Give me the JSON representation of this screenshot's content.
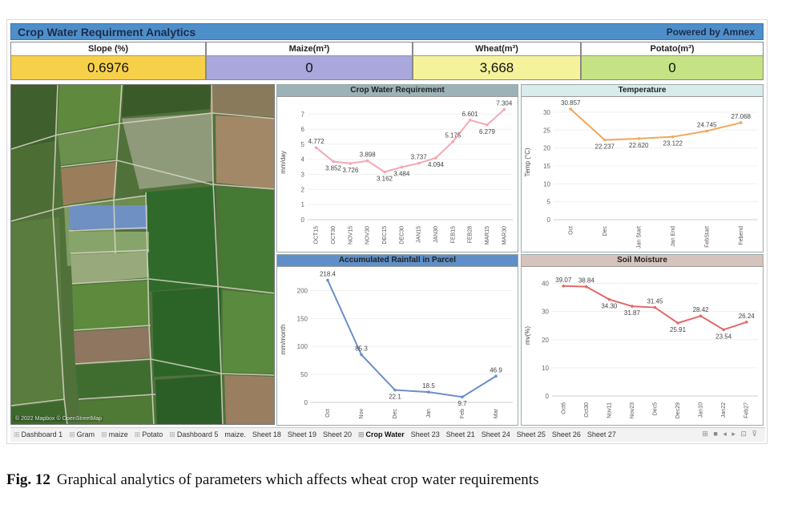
{
  "header": {
    "title": "Crop Water Requirment Analytics",
    "powered_by": "Powered by Amnex"
  },
  "kpis": [
    {
      "label": "Slope (%)",
      "value": "0.6976",
      "color": "#f7d04a"
    },
    {
      "label": "Maize(m³)",
      "value": "0",
      "color": "#a9a7dc"
    },
    {
      "label": "Wheat(m³)",
      "value": "3,668",
      "color": "#f5f29c"
    },
    {
      "label": "Potato(m³)",
      "value": "0",
      "color": "#c5e384"
    }
  ],
  "map": {
    "attribution": "© 2022 Mapbox © OpenStreetMap"
  },
  "panels": {
    "cwr": {
      "title": "Crop Water Requirement",
      "header_color": "#9bb3b7",
      "line_color": "#f4a8b2",
      "chart_data": {
        "type": "line",
        "ylabel": "mm/day",
        "yticks": [
          0,
          1,
          2,
          3,
          4,
          5,
          6,
          7
        ],
        "ylim": [
          0,
          7.6
        ],
        "categories": [
          "OCT15",
          "OCT30",
          "NOV15",
          "NOV30",
          "DEC15",
          "DEC30",
          "JAN15",
          "JAN30",
          "FEB15",
          "FEB28",
          "MAR15",
          "MAR30"
        ],
        "values": [
          4.772,
          3.852,
          3.726,
          3.898,
          3.162,
          3.484,
          3.737,
          4.094,
          5.175,
          6.601,
          6.279,
          7.304
        ],
        "labels": [
          "4.772",
          "3.852",
          "3.726",
          "3.898",
          "3.162",
          "3.484",
          "3.737",
          "4.094",
          "5.175",
          "6.601",
          "6.279",
          "7.304"
        ]
      }
    },
    "temp": {
      "title": "Temperature",
      "header_color": "#d8ecec",
      "line_color": "#f0a85a",
      "chart_data": {
        "type": "line",
        "ylabel": "Temp (°C)",
        "yticks": [
          0,
          5,
          10,
          15,
          20,
          25,
          30
        ],
        "ylim": [
          0,
          32
        ],
        "categories": [
          "Oct",
          "Dec",
          "Jan Start",
          "Jan End",
          "FebStart",
          "Febend"
        ],
        "values": [
          30.857,
          22.237,
          22.62,
          23.122,
          24.745,
          27.068
        ],
        "labels": [
          "30.857",
          "22.237",
          "22.620",
          "23.122",
          "24.745",
          "27.068"
        ]
      }
    },
    "rain": {
      "title": "Accumulated Rainfall in Parcel",
      "header_color": "#5e8fc9",
      "line_color": "#6a8fc6",
      "chart_data": {
        "type": "line",
        "ylabel": "mm/month",
        "yticks": [
          0,
          50,
          100,
          150,
          200
        ],
        "ylim": [
          0,
          225
        ],
        "categories": [
          "Oct",
          "Nov",
          "Dec",
          "Jan",
          "Feb",
          "Mar"
        ],
        "values": [
          218.4,
          85.3,
          22.1,
          18.5,
          9.7,
          46.9
        ],
        "labels": [
          "218.4",
          "85.3",
          "22.1",
          "18.5",
          "9.7",
          "46.9"
        ]
      }
    },
    "soil": {
      "title": "Soil Moisture",
      "header_color": "#d6c3bd",
      "line_color": "#e06a6a",
      "chart_data": {
        "type": "line",
        "ylabel": "mv(%)",
        "yticks": [
          0,
          10,
          20,
          30,
          40
        ],
        "ylim": [
          0,
          43
        ],
        "categories": [
          "Oct6",
          "Oct30",
          "Nov11",
          "Nov23",
          "Dec5",
          "Dec29",
          "Jan10",
          "Jan22",
          "Feb27"
        ],
        "values": [
          39.07,
          38.84,
          34.3,
          31.87,
          31.45,
          25.91,
          28.42,
          23.54,
          26.24
        ],
        "labels": [
          "39.07",
          "38.84",
          "34.30",
          "31.87",
          "31.45",
          "25.91",
          "28.42",
          "23.54",
          "26.24"
        ]
      }
    }
  },
  "tabs": {
    "items": [
      "Dashboard 1",
      "Gram",
      "maize",
      "Potato",
      "Dashboard 5",
      "maize.",
      "Sheet 18",
      "Sheet 19",
      "Sheet 20",
      "Crop Water",
      "Sheet 23",
      "Sheet 21",
      "Sheet 24",
      "Sheet 25",
      "Sheet 26",
      "Sheet 27"
    ],
    "active": "Crop Water",
    "with_icon": [
      "Dashboard 1",
      "Gram",
      "maize",
      "Potato",
      "Dashboard 5",
      "Crop Water"
    ],
    "controls": "⊞ ■ ◂ ▸ ⊡ ⊽"
  },
  "caption": {
    "label": "Fig. 12",
    "text": "Graphical analytics of parameters which affects wheat crop water requirements"
  }
}
